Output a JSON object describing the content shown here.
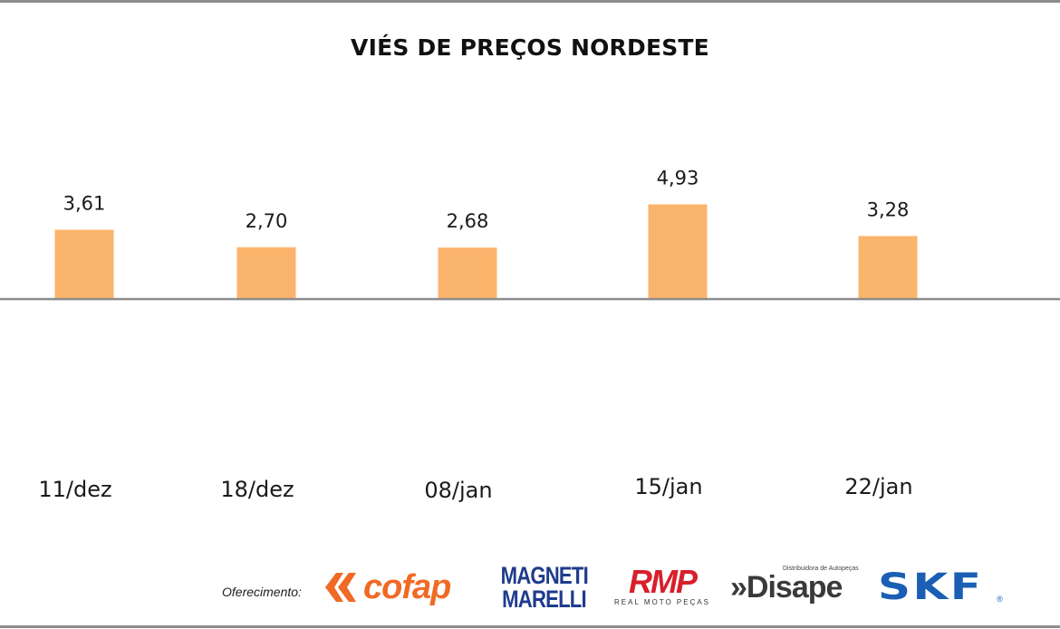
{
  "chart_data": {
    "type": "bar",
    "title": "VIÉS DE PREÇOS NORDESTE",
    "categories": [
      "11/dez",
      "18/dez",
      "08/jan",
      "15/jan",
      "22/jan"
    ],
    "values": [
      3.61,
      2.7,
      2.68,
      4.93,
      3.28
    ],
    "value_labels": [
      "3,61",
      "2,70",
      "2,68",
      "4,93",
      "3,28"
    ],
    "xlabel": "",
    "ylabel": "",
    "ylim": [
      0,
      9
    ],
    "grid": false,
    "legend": "none",
    "bar_color": "#fbb46c",
    "axis_color": "#8c8c8c"
  },
  "sponsors": {
    "label": "Oferecimento:",
    "logos": [
      {
        "name": "cofap-logo",
        "text": "cofap",
        "color": "#f06a25"
      },
      {
        "name": "magneti-marelli-logo",
        "line1": "MAGNETI",
        "line2": "MARELLI",
        "color": "#1f3b8c"
      },
      {
        "name": "rmp-logo",
        "text": "RMP",
        "subtext": "REAL MOTO PEÇAS",
        "color": "#d7202a"
      },
      {
        "name": "disape-logo",
        "text": "»Disape",
        "subtext": "Distribuidora de Autopeças",
        "color": "#3a3a3a"
      },
      {
        "name": "skf-logo",
        "text": "SKF",
        "reg": "®",
        "color": "#1a5fb4"
      }
    ]
  }
}
